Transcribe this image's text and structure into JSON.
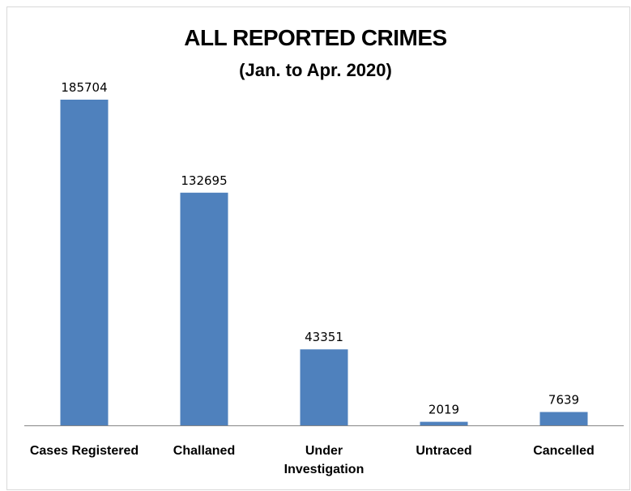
{
  "chart_data": {
    "type": "bar",
    "title": "ALL REPORTED CRIMES",
    "subtitle": "(Jan. to Apr. 2020)",
    "categories": [
      "Cases Registered",
      "Challaned",
      "Under Investigation",
      "Untraced",
      "Cancelled"
    ],
    "category_lines": [
      [
        "Cases Registered"
      ],
      [
        "Challaned"
      ],
      [
        "Under",
        "Investigation"
      ],
      [
        "Untraced"
      ],
      [
        "Cancelled"
      ]
    ],
    "values": [
      185704,
      132695,
      43351,
      2019,
      7639
    ],
    "ylim": [
      0,
      185704
    ],
    "grid": false,
    "legend": "none",
    "bar_color": "#4f81bd",
    "axis_color": "#868686"
  }
}
